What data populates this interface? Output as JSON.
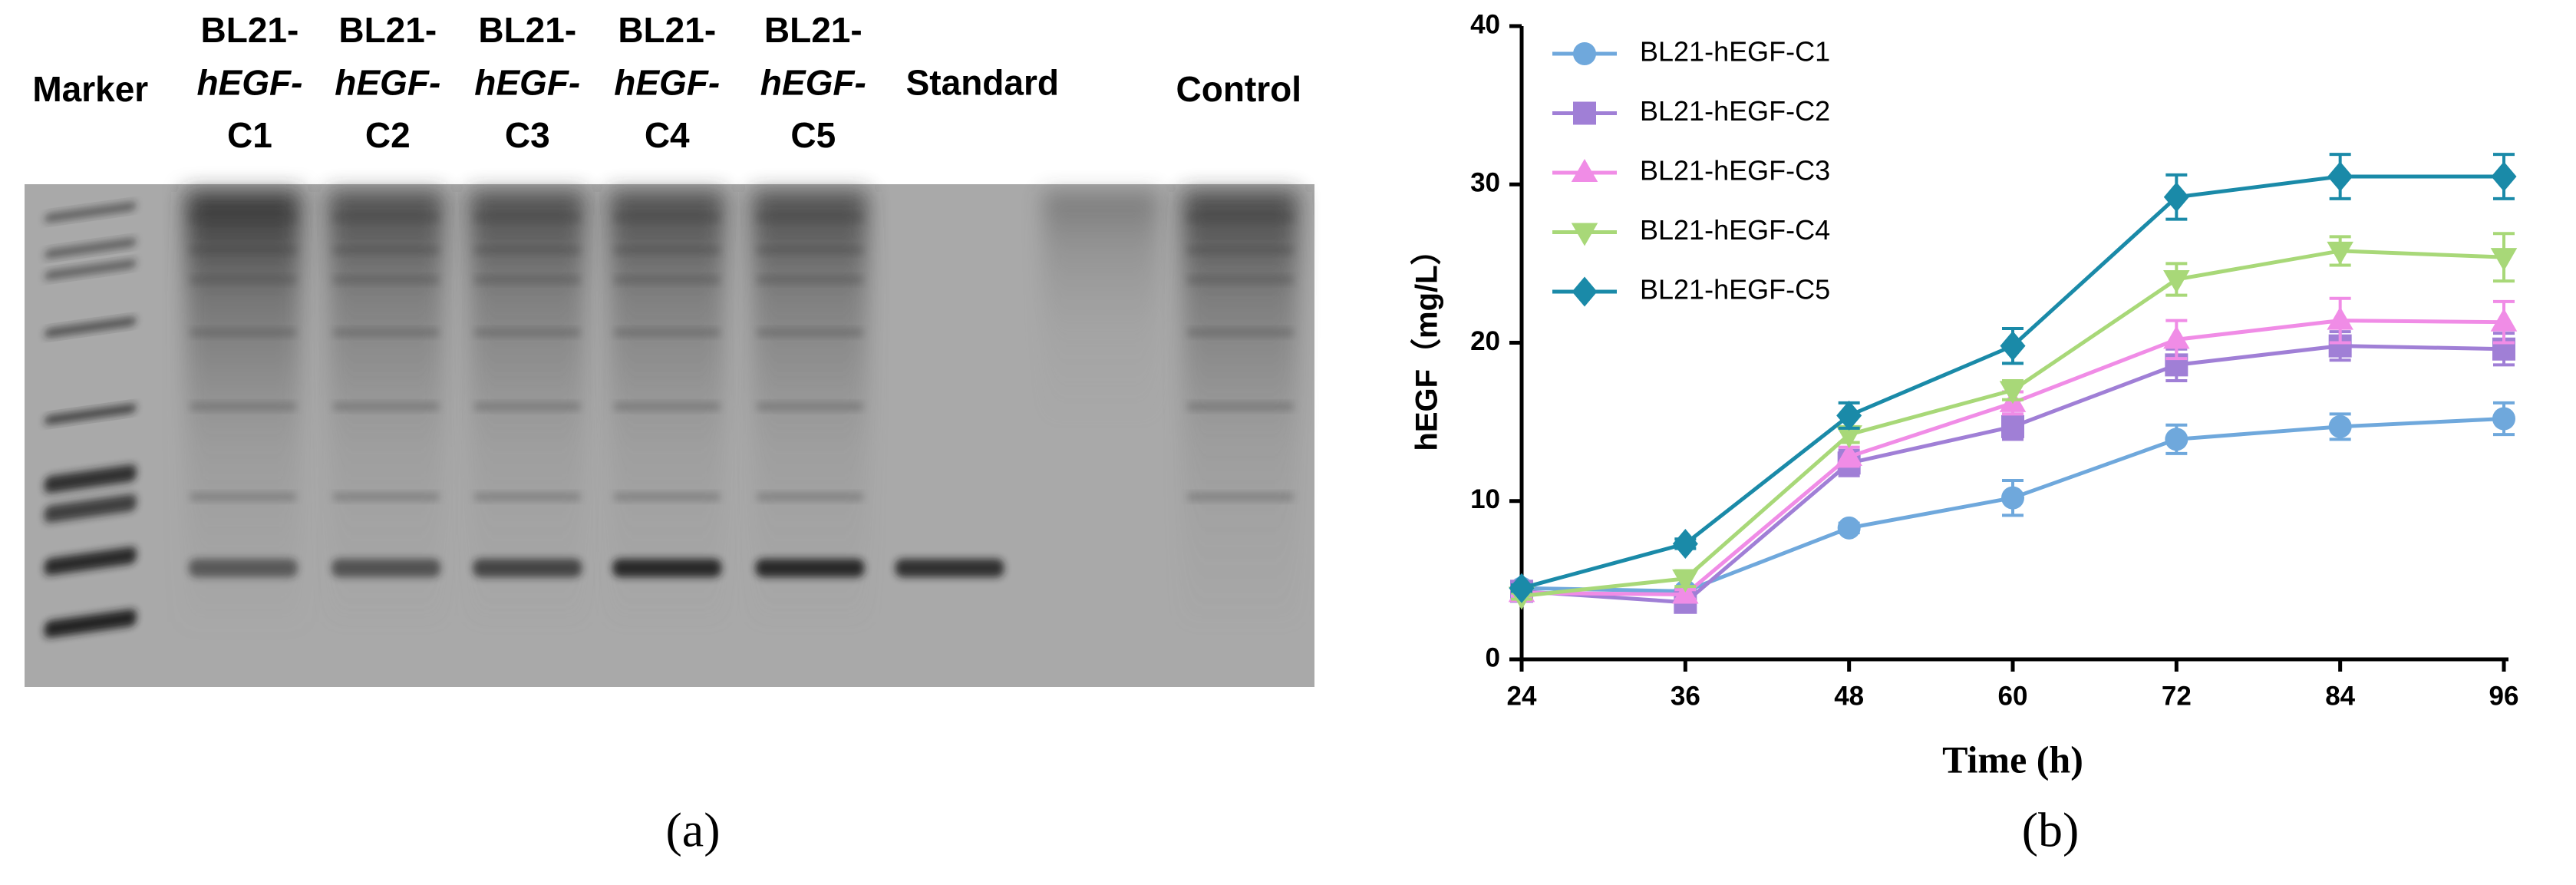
{
  "gel": {
    "lanes": [
      [
        "Marker"
      ],
      [
        "BL21-",
        "hEGF-",
        "C1"
      ],
      [
        "BL21-",
        "hEGF-",
        "C2"
      ],
      [
        "BL21-",
        "hEGF-",
        "C3"
      ],
      [
        "BL21-",
        "hEGF-",
        "C4"
      ],
      [
        "BL21-",
        "hEGF-",
        "C5"
      ],
      [
        "Standard"
      ],
      [
        "Control"
      ]
    ],
    "caption": "(a)"
  },
  "chart_data": {
    "type": "line",
    "caption": "(b)",
    "x_label": "Time (h)",
    "y_label": "hEGF（mg/L）",
    "x": [
      24,
      36,
      48,
      60,
      72,
      84,
      96
    ],
    "xlim": [
      24,
      96
    ],
    "xticks": [
      24,
      36,
      48,
      60,
      72,
      84,
      96
    ],
    "ylim": [
      0,
      40
    ],
    "yticks": [
      0,
      10,
      20,
      30,
      40
    ],
    "legend": "upper left",
    "series": [
      {
        "name": "BL21-hEGF-C1",
        "color": "#6fa8dc",
        "marker": "circle",
        "values": [
          4.5,
          4.3,
          8.3,
          10.2,
          13.9,
          14.7,
          15.2
        ],
        "errors": [
          0.2,
          0.2,
          0.3,
          1.1,
          0.9,
          0.8,
          1.0
        ]
      },
      {
        "name": "BL21-hEGF-C2",
        "color": "#a07fd6",
        "marker": "square",
        "values": [
          4.3,
          3.6,
          12.4,
          14.7,
          18.6,
          19.8,
          19.6
        ],
        "errors": [
          0.2,
          0.3,
          0.8,
          0.8,
          1.0,
          0.9,
          1.0
        ]
      },
      {
        "name": "BL21-hEGF-C3",
        "color": "#f08ce6",
        "marker": "triangle-up",
        "values": [
          4.2,
          4.1,
          12.8,
          16.2,
          20.2,
          21.4,
          21.3
        ],
        "errors": [
          0.2,
          0.3,
          0.6,
          0.7,
          1.2,
          1.4,
          1.3
        ]
      },
      {
        "name": "BL21-hEGF-C4",
        "color": "#a8d878",
        "marker": "triangle-down",
        "values": [
          4.0,
          5.1,
          14.2,
          17.0,
          24.0,
          25.8,
          25.4
        ],
        "errors": [
          0.2,
          0.5,
          0.5,
          0.6,
          1.0,
          0.9,
          1.5
        ]
      },
      {
        "name": "BL21-hEGF-C5",
        "color": "#1a8aa8",
        "marker": "diamond",
        "values": [
          4.5,
          7.3,
          15.4,
          19.8,
          29.2,
          30.5,
          30.5
        ],
        "errors": [
          0.2,
          0.3,
          0.8,
          1.1,
          1.4,
          1.4,
          1.4
        ]
      }
    ]
  }
}
